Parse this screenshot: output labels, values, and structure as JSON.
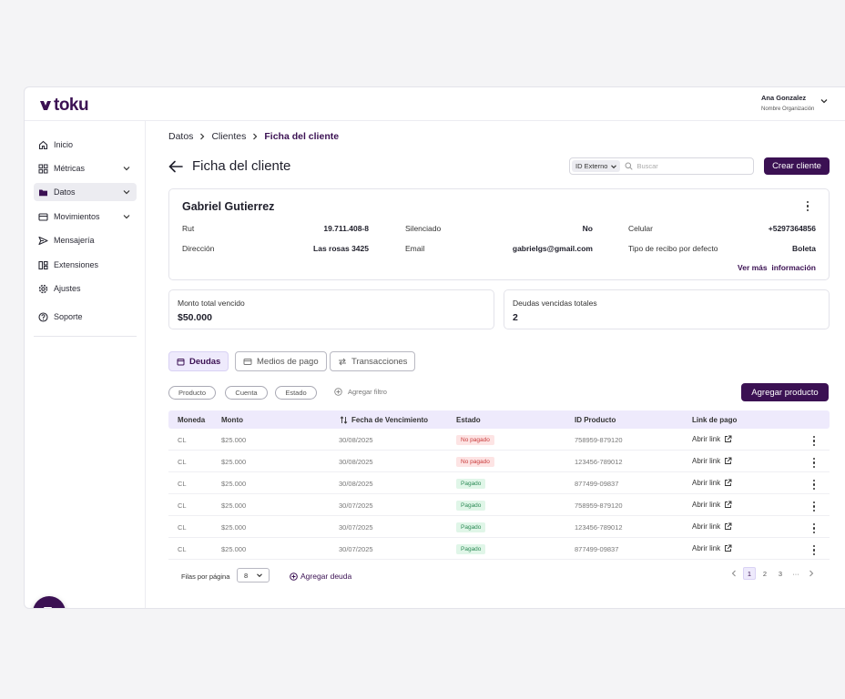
{
  "brand": {
    "logo_text": "toku",
    "color": "#3b1153"
  },
  "user": {
    "name": "Ana Gonzalez",
    "organization": "Nombre Organización"
  },
  "sidebar": {
    "items": [
      {
        "label": "Inicio",
        "icon": "home-icon"
      },
      {
        "label": "Métricas",
        "icon": "grid-icon",
        "has_chevron": true
      },
      {
        "label": "Datos",
        "icon": "folder-icon",
        "has_chevron": true,
        "active": true
      },
      {
        "label": "Movimientos",
        "icon": "card-icon",
        "has_chevron": true
      },
      {
        "label": "Mensajería",
        "icon": "send-icon"
      },
      {
        "label": "Extensiones",
        "icon": "extensions-icon"
      },
      {
        "label": "Ajustes",
        "icon": "gear-icon"
      },
      {
        "label": "Soporte",
        "icon": "help-icon"
      }
    ]
  },
  "breadcrumb": {
    "items": [
      "Datos",
      "Clientes"
    ],
    "current": "Ficha del cliente"
  },
  "header": {
    "title": "Ficha del cliente",
    "id_selector": "ID Externo",
    "search_placeholder": "Buscar",
    "create_button": "Crear cliente"
  },
  "client": {
    "name": "Gabriel Gutierrez",
    "fields": {
      "rut_label": "Rut",
      "rut_value": "19.711.408-8",
      "silenciado_label": "Silenciado",
      "silenciado_value": "No",
      "celular_label": "Celular",
      "celular_value": "+5297364856",
      "direccion_label": "Dirección",
      "direccion_value": "Las rosas 3425",
      "email_label": "Email",
      "email_value": "gabrielgs@gmail.com",
      "recibo_label": "Tipo de recibo por defecto",
      "recibo_value": "Boleta"
    },
    "more_info": "Ver más  información"
  },
  "stats": [
    {
      "label": "Monto total vencido",
      "value": "$50.000"
    },
    {
      "label": "Deudas vencidas totales",
      "value": "2"
    }
  ],
  "tabs": [
    {
      "label": "Deudas",
      "active": true
    },
    {
      "label": "Medios de pago"
    },
    {
      "label": "Transacciones"
    }
  ],
  "filters": {
    "chips": [
      "Producto",
      "Cuenta",
      "Estado"
    ],
    "add_filter": "Agregar filtro"
  },
  "add_product_button": "Agregar producto",
  "table": {
    "headers": [
      "Moneda",
      "Monto",
      "Fecha de Vencimiento",
      "Estado",
      "ID Producto",
      "Link de pago"
    ],
    "rows": [
      {
        "moneda": "CL",
        "monto": "$25.000",
        "fecha": "30/08/2025",
        "estado": "No pagado",
        "status": "unpaid",
        "id": "758959-879120",
        "link": "Abrir link"
      },
      {
        "moneda": "CL",
        "monto": "$25.000",
        "fecha": "30/08/2025",
        "estado": "No pagado",
        "status": "unpaid",
        "id": "123456-789012",
        "link": "Abrir link"
      },
      {
        "moneda": "CL",
        "monto": "$25.000",
        "fecha": "30/08/2025",
        "estado": "Pagado",
        "status": "paid",
        "id": "877499-09837",
        "link": "Abrir link"
      },
      {
        "moneda": "CL",
        "monto": "$25.000",
        "fecha": "30/07/2025",
        "estado": "Pagado",
        "status": "paid",
        "id": "758959-879120",
        "link": "Abrir link"
      },
      {
        "moneda": "CL",
        "monto": "$25.000",
        "fecha": "30/07/2025",
        "estado": "Pagado",
        "status": "paid",
        "id": "123456-789012",
        "link": "Abrir link"
      },
      {
        "moneda": "CL",
        "monto": "$25.000",
        "fecha": "30/07/2025",
        "estado": "Pagado",
        "status": "paid",
        "id": "877499-09837",
        "link": "Abrir link"
      }
    ]
  },
  "footer": {
    "rows_per_page_label": "Filas por página",
    "rows_per_page_value": "8",
    "add_debt": "Agregar deuda",
    "pages": [
      "1",
      "2",
      "3",
      "···"
    ],
    "current_page": "1"
  }
}
